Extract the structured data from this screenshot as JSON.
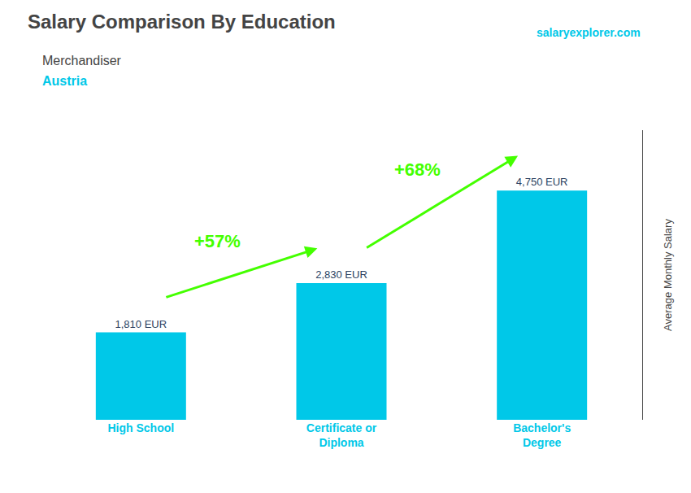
{
  "chart_data": {
    "type": "bar",
    "title": "Salary Comparison By Education",
    "subtitle": [
      "Merchandiser",
      "Austria"
    ],
    "ylabel": "Average Monthly Salary",
    "categories": [
      "High School",
      "Certificate or\nDiploma",
      "Bachelor's\nDegree"
    ],
    "values": [
      1810,
      2830,
      4750
    ],
    "value_labels": [
      "1,810 EUR",
      "2,830 EUR",
      "4,750 EUR"
    ],
    "data_labels": true,
    "color": "#00c8e8",
    "ylim": [
      0,
      6000
    ],
    "grid": false,
    "tick_labels": "x",
    "annotations": [
      {
        "text": "+57%",
        "from": "High School",
        "to": "Certificate or\nDiploma",
        "color": "#44ff00"
      },
      {
        "text": "+68%",
        "from": "Certificate or\nDiploma",
        "to": "Bachelor's\nDegree",
        "color": "#44ff00"
      },
      {
        "text": "salaryexplorer.com"
      }
    ]
  }
}
